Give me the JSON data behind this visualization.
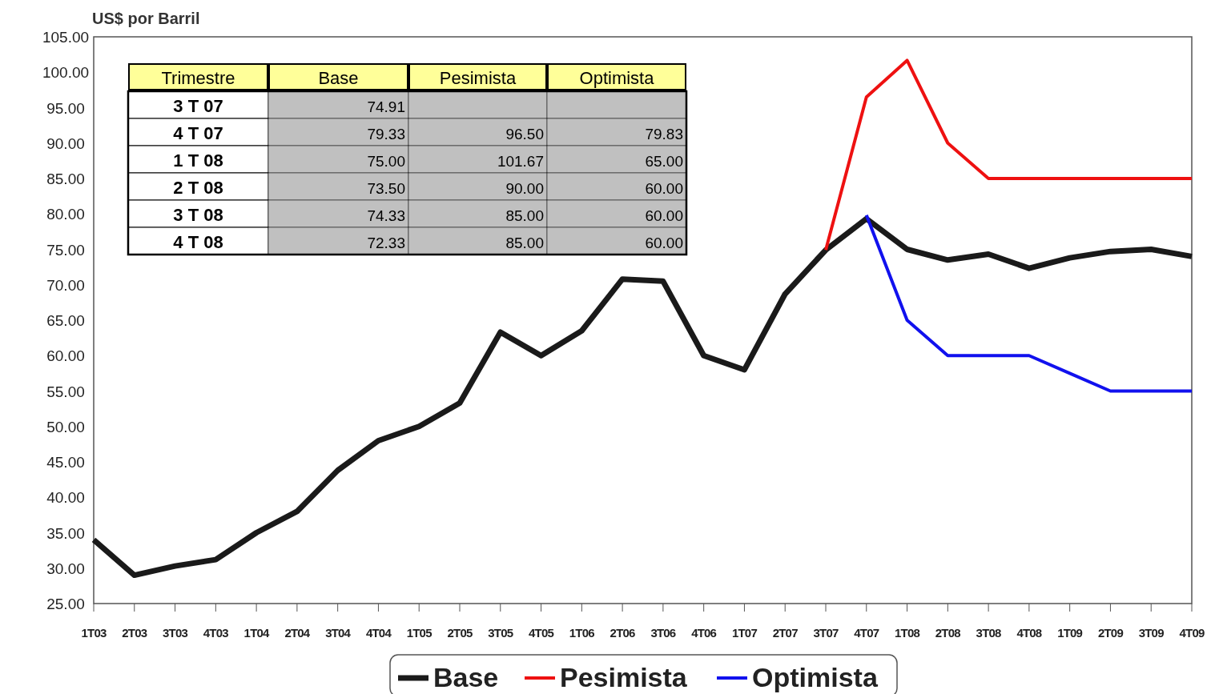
{
  "chart_data": {
    "type": "line",
    "ylabel": "US$ por Barril",
    "categories": [
      "1T03",
      "2T03",
      "3T03",
      "4T03",
      "1T04",
      "2T04",
      "3T04",
      "4T04",
      "1T05",
      "2T05",
      "3T05",
      "4T05",
      "1T06",
      "2T06",
      "3T06",
      "4T06",
      "1T07",
      "2T07",
      "3T07",
      "4T07",
      "1T08",
      "2T08",
      "3T08",
      "4T08",
      "1T09",
      "2T09",
      "3T09",
      "4T09"
    ],
    "series": [
      {
        "name": "Base",
        "color": "#1a1a1a",
        "values": [
          34,
          29,
          30.3,
          31.2,
          35,
          38,
          43.8,
          48,
          50,
          53.3,
          63.3,
          60,
          63.5,
          70.8,
          70.5,
          60,
          58,
          68.7,
          74.91,
          79.33,
          75,
          73.5,
          74.33,
          72.33,
          73.8,
          74.7,
          75,
          74
        ]
      },
      {
        "name": "Pesimista",
        "color": "#ee1111",
        "values": [
          null,
          null,
          null,
          null,
          null,
          null,
          null,
          null,
          null,
          null,
          null,
          null,
          null,
          null,
          null,
          null,
          null,
          null,
          74.91,
          96.5,
          101.67,
          90,
          85,
          85,
          85,
          85,
          85,
          85
        ]
      },
      {
        "name": "Optimista",
        "color": "#1111ee",
        "values": [
          null,
          null,
          null,
          null,
          null,
          null,
          null,
          null,
          null,
          null,
          null,
          null,
          null,
          null,
          null,
          null,
          null,
          null,
          null,
          79.83,
          65,
          60,
          60,
          60,
          57.5,
          55,
          55,
          55
        ]
      }
    ],
    "ylim": [
      25,
      105
    ],
    "yticks": [
      {
        "value": 25,
        "label": "25.00"
      },
      {
        "value": 30,
        "label": "30.00"
      },
      {
        "value": 35,
        "label": "35.00"
      },
      {
        "value": 40,
        "label": "40.00"
      },
      {
        "value": 45,
        "label": "45.00"
      },
      {
        "value": 50,
        "label": "50.00"
      },
      {
        "value": 55,
        "label": "55.00"
      },
      {
        "value": 60,
        "label": "60.00"
      },
      {
        "value": 65,
        "label": "65.00"
      },
      {
        "value": 70,
        "label": "70.00"
      },
      {
        "value": 75,
        "label": "75.00"
      },
      {
        "value": 80,
        "label": "80.00"
      },
      {
        "value": 85,
        "label": "85.00"
      },
      {
        "value": 90,
        "label": "90.00"
      },
      {
        "value": 95,
        "label": "95.00"
      },
      {
        "value": 100,
        "label": "100.00"
      },
      {
        "value": 105,
        "label": "105.00"
      }
    ],
    "grid": false,
    "legend": "bottom",
    "marker": "none",
    "line_style": "solid",
    "annotations": [
      "Trimestre",
      "3 T 07",
      "4 T 07",
      "1 T 08",
      "2 T 08",
      "3 T 08",
      "4 T 08",
      "74.91",
      "79.33",
      "96.50",
      "79.83",
      "75.00",
      "101.67",
      "65.00",
      "73.50",
      "90.00",
      "60.00",
      "74.33",
      "85.00",
      "60.00",
      "72.33",
      "85.00",
      "60.00"
    ]
  }
}
